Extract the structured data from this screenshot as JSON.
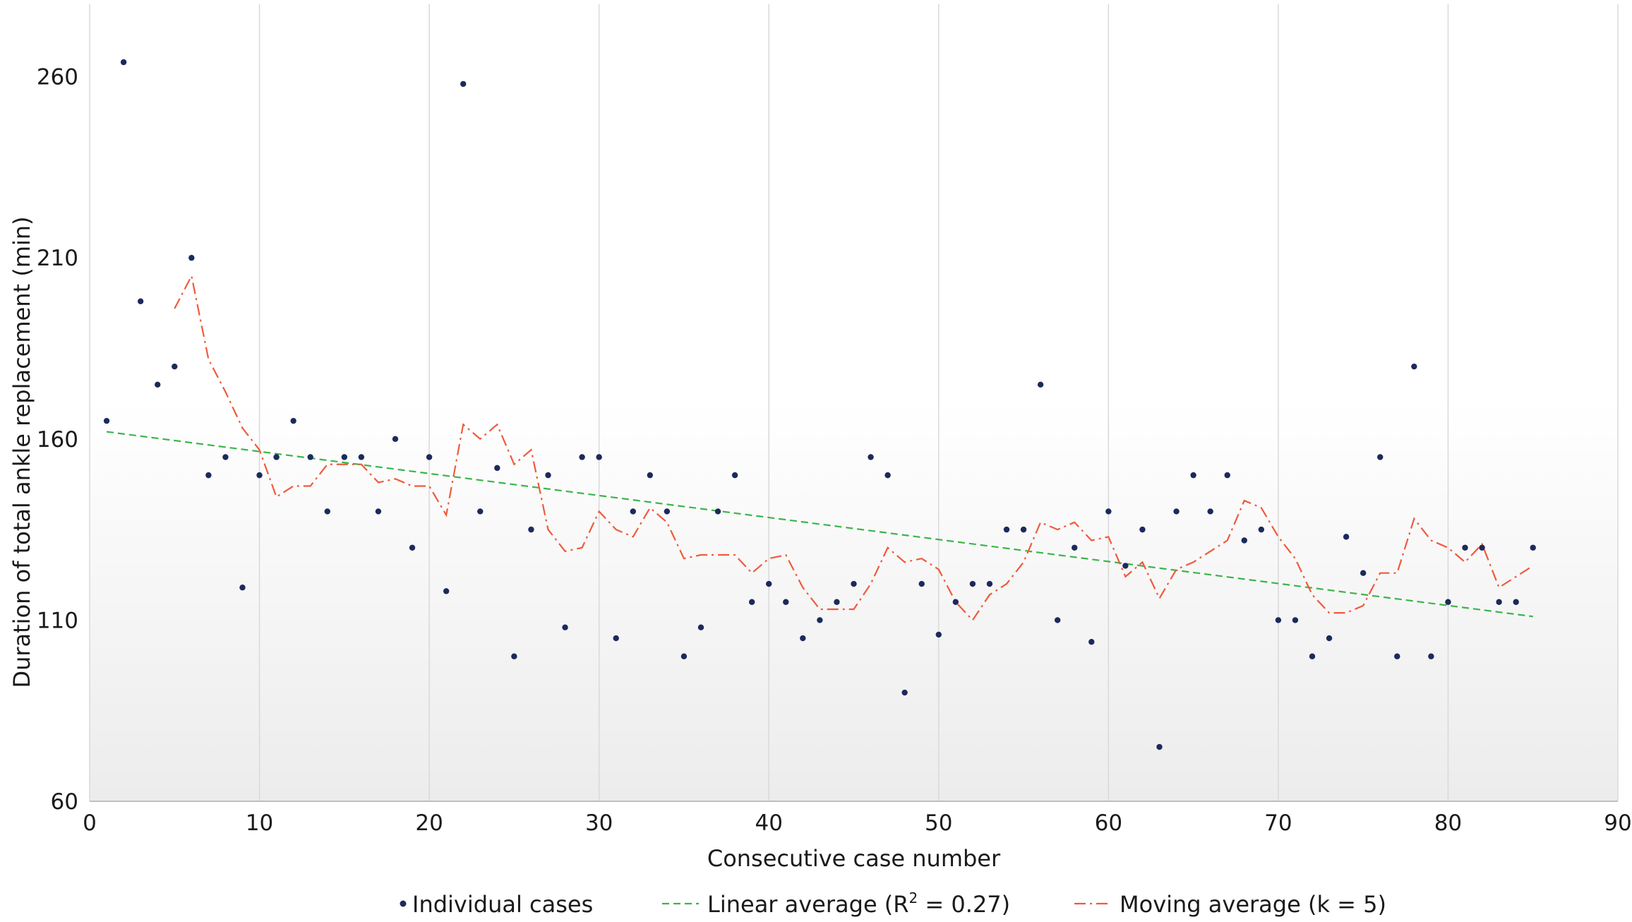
{
  "chart_data": {
    "type": "scatter",
    "xlabel": "Consecutive case number",
    "ylabel": "Duration of total ankle replacement (min)",
    "xlim": [
      0,
      90
    ],
    "ylim": [
      60,
      280
    ],
    "x_ticks": [
      0,
      10,
      20,
      30,
      40,
      50,
      60,
      70,
      80,
      90
    ],
    "y_ticks": [
      60,
      110,
      160,
      210,
      260
    ],
    "grid": "vertical",
    "background": "gradient-white-to-light-gray",
    "legend_position": "bottom",
    "colors": {
      "points": "#1b2a5c",
      "linear": "#3bb54a",
      "moving": "#f05a3c",
      "grid": "#d9d9d9"
    },
    "legend": {
      "individual": "Individual cases",
      "linear_prefix": "Linear average (R",
      "linear_sup": "2",
      "linear_suffix": " = 0.27)",
      "moving": "Moving average (k = 5)"
    },
    "series": [
      {
        "name": "Individual cases",
        "kind": "points",
        "x": [
          1,
          2,
          3,
          4,
          5,
          6,
          7,
          8,
          9,
          10,
          11,
          12,
          13,
          14,
          15,
          16,
          17,
          18,
          19,
          20,
          21,
          22,
          23,
          24,
          25,
          26,
          27,
          28,
          29,
          30,
          31,
          32,
          33,
          34,
          35,
          36,
          37,
          38,
          39,
          40,
          41,
          42,
          43,
          44,
          45,
          46,
          47,
          48,
          49,
          50,
          51,
          52,
          53,
          54,
          55,
          56,
          57,
          58,
          59,
          60,
          61,
          62,
          63,
          64,
          65,
          66,
          67,
          68,
          69,
          70,
          71,
          72,
          73,
          74,
          75,
          76,
          77,
          78,
          79,
          80,
          81,
          82,
          83,
          84,
          85
        ],
        "y": [
          165,
          264,
          198,
          175,
          180,
          210,
          150,
          155,
          119,
          150,
          155,
          165,
          155,
          140,
          155,
          155,
          140,
          160,
          130,
          155,
          118,
          258,
          140,
          152,
          100,
          135,
          150,
          108,
          155,
          155,
          105,
          140,
          150,
          140,
          100,
          108,
          140,
          150,
          115,
          120,
          115,
          105,
          110,
          115,
          120,
          155,
          150,
          90,
          120,
          106,
          115,
          120,
          120,
          135,
          135,
          175,
          110,
          130,
          104,
          140,
          125,
          135,
          75,
          140,
          150,
          140,
          150,
          132,
          135,
          110,
          110,
          100,
          105,
          133,
          123,
          155,
          100,
          180,
          100,
          115,
          130,
          130,
          115,
          115,
          130
        ]
      },
      {
        "name": "Linear average (R2 = 0.27)",
        "kind": "trend",
        "x": [
          1,
          85
        ],
        "y": [
          162,
          111
        ]
      },
      {
        "name": "Moving average (k = 5)",
        "kind": "moving",
        "x": [
          5,
          6,
          7,
          8,
          9,
          10,
          11,
          12,
          13,
          14,
          15,
          16,
          17,
          18,
          19,
          20,
          21,
          22,
          23,
          24,
          25,
          26,
          27,
          28,
          29,
          30,
          31,
          32,
          33,
          34,
          35,
          36,
          37,
          38,
          39,
          40,
          41,
          42,
          43,
          44,
          45,
          46,
          47,
          48,
          49,
          50,
          51,
          52,
          53,
          54,
          55,
          56,
          57,
          58,
          59,
          60,
          61,
          62,
          63,
          64,
          65,
          66,
          67,
          68,
          69,
          70,
          71,
          72,
          73,
          74,
          75,
          76,
          77,
          78,
          79,
          80,
          81,
          82,
          83,
          84,
          85
        ],
        "y": [
          196,
          205,
          182,
          173,
          163,
          157,
          144,
          147,
          147,
          153,
          153,
          153,
          148,
          149,
          147,
          147,
          139,
          164,
          160,
          164,
          153,
          157,
          135,
          129,
          130,
          140,
          135,
          133,
          141,
          137,
          127,
          128,
          128,
          128,
          123,
          127,
          128,
          119,
          113,
          113,
          113,
          120,
          130,
          126,
          127,
          124,
          115,
          110,
          117,
          120,
          126,
          137,
          135,
          137,
          132,
          133,
          122,
          126,
          116,
          124,
          126,
          129,
          132,
          143,
          141,
          133,
          127,
          117,
          112,
          112,
          114,
          123,
          123,
          138,
          132,
          130,
          126,
          131,
          119,
          122,
          125
        ]
      }
    ]
  }
}
